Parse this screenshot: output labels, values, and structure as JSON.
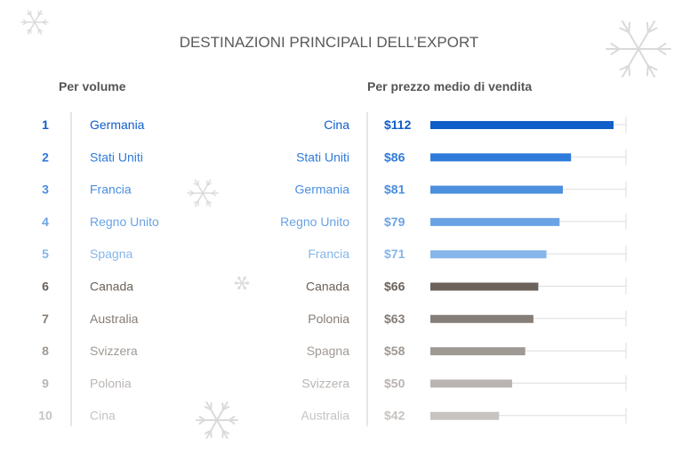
{
  "chart_data": {
    "type": "bar",
    "title": "DESTINAZIONI PRINCIPALI DELL’EXPORT",
    "volume": {
      "heading": "Per volume",
      "ranks": [
        "1",
        "2",
        "3",
        "4",
        "5",
        "6",
        "7",
        "8",
        "9",
        "10"
      ],
      "countries": [
        "Germania",
        "Stati Uniti",
        "Francia",
        "Regno Unito",
        "Spagna",
        "Canada",
        "Australia",
        "Svizzera",
        "Polonia",
        "Cina"
      ]
    },
    "price": {
      "heading": "Per prezzo medio di vendita",
      "categories": [
        "Cina",
        "Stati Uniti",
        "Germania",
        "Regno Unito",
        "Francia",
        "Canada",
        "Polonia",
        "Spagna",
        "Svizzera",
        "Australia"
      ],
      "value_labels": [
        "$112",
        "$86",
        "$81",
        "$79",
        "$71",
        "$66",
        "$63",
        "$58",
        "$50",
        "$42"
      ],
      "values": [
        112,
        86,
        81,
        79,
        71,
        66,
        63,
        58,
        50,
        42
      ],
      "unit": "$"
    },
    "row_colors": [
      "#0f5ec9",
      "#2f7bd9",
      "#4b8fdd",
      "#6aa3e4",
      "#86b6ea",
      "#6b625b",
      "#857d77",
      "#9f9994",
      "#bab5b2",
      "#c7c3c0"
    ],
    "track_color": "#dddddd",
    "divider_color": "#cccccc"
  },
  "decoration": {
    "snowflake_color": "#d9dadc",
    "snowflake_icon": "snowflake-icon"
  }
}
